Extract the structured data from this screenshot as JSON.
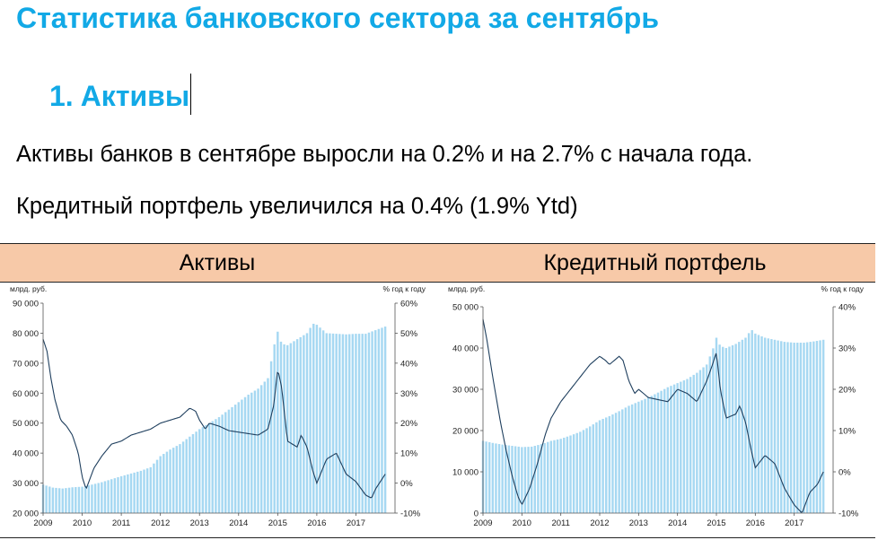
{
  "page": {
    "title": "Статистика банковского сектора за сентябрь",
    "section_number": "1.",
    "section_title": "Активы",
    "paragraph1": "Активы банков в сентябре выросли на 0.2% и на 2.7% с начала года.",
    "paragraph2": "Кредитный портфель увеличился на 0.4% (1.9% Ytd)"
  },
  "table": {
    "header_left": "Активы",
    "header_right": "Кредитный портфель",
    "header_bg": "#f7c9a8"
  },
  "colors": {
    "title": "#12a9e6",
    "bars": "#a6d8f2",
    "line": "#1f3f5e"
  },
  "chart_data": [
    {
      "type": "bar+line",
      "title": "Активы",
      "y_left_unit": "млрд. руб.",
      "y_right_unit": "% год к году",
      "y_left_range": [
        20000,
        90000
      ],
      "y_left_ticks": [
        "90 000",
        "80 000",
        "70 000",
        "60 000",
        "50 000",
        "40 000",
        "30 000",
        "20 000"
      ],
      "y_right_range": [
        -10,
        60
      ],
      "y_right_ticks": [
        "60%",
        "50%",
        "40%",
        "30%",
        "20%",
        "10%",
        "0%",
        "-10%"
      ],
      "x_ticks": [
        "2009",
        "2010",
        "2011",
        "2012",
        "2013",
        "2014",
        "2015",
        "2016",
        "2017"
      ],
      "x_range": [
        2009.0,
        2017.75
      ],
      "bars_series": {
        "name": "Активы, млрд. руб.",
        "points": [
          [
            2009.0,
            29500
          ],
          [
            2009.25,
            28500
          ],
          [
            2009.5,
            28200
          ],
          [
            2009.75,
            28600
          ],
          [
            2010.0,
            28800
          ],
          [
            2010.25,
            29500
          ],
          [
            2010.5,
            30300
          ],
          [
            2010.75,
            31300
          ],
          [
            2011.0,
            32300
          ],
          [
            2011.25,
            33200
          ],
          [
            2011.5,
            34100
          ],
          [
            2011.75,
            35300
          ],
          [
            2012.0,
            39000
          ],
          [
            2012.25,
            41200
          ],
          [
            2012.5,
            43000
          ],
          [
            2012.75,
            45500
          ],
          [
            2013.0,
            48000
          ],
          [
            2013.25,
            50000
          ],
          [
            2013.5,
            52000
          ],
          [
            2013.75,
            54500
          ],
          [
            2014.0,
            57000
          ],
          [
            2014.25,
            59500
          ],
          [
            2014.5,
            61500
          ],
          [
            2014.75,
            65000
          ],
          [
            2014.92,
            76500
          ],
          [
            2015.0,
            80500
          ],
          [
            2015.1,
            76500
          ],
          [
            2015.25,
            76000
          ],
          [
            2015.5,
            78000
          ],
          [
            2015.75,
            80000
          ],
          [
            2015.9,
            83200
          ],
          [
            2016.0,
            82800
          ],
          [
            2016.25,
            80000
          ],
          [
            2016.5,
            79800
          ],
          [
            2016.75,
            79600
          ],
          [
            2017.0,
            79800
          ],
          [
            2017.25,
            79800
          ],
          [
            2017.5,
            81000
          ],
          [
            2017.75,
            82200
          ]
        ]
      },
      "line_series": {
        "name": "% год к году",
        "points": [
          [
            2009.0,
            48
          ],
          [
            2009.1,
            44
          ],
          [
            2009.2,
            35
          ],
          [
            2009.3,
            28
          ],
          [
            2009.45,
            21
          ],
          [
            2009.6,
            19
          ],
          [
            2009.75,
            16
          ],
          [
            2009.9,
            10
          ],
          [
            2010.0,
            2
          ],
          [
            2010.1,
            -2
          ],
          [
            2010.3,
            5
          ],
          [
            2010.5,
            9
          ],
          [
            2010.75,
            13
          ],
          [
            2011.0,
            14
          ],
          [
            2011.25,
            16
          ],
          [
            2011.5,
            17
          ],
          [
            2011.75,
            18
          ],
          [
            2012.0,
            20
          ],
          [
            2012.25,
            21
          ],
          [
            2012.5,
            22
          ],
          [
            2012.75,
            25
          ],
          [
            2012.9,
            24
          ],
          [
            2013.0,
            21
          ],
          [
            2013.15,
            18
          ],
          [
            2013.25,
            20
          ],
          [
            2013.5,
            19
          ],
          [
            2013.75,
            17.5
          ],
          [
            2014.0,
            17
          ],
          [
            2014.25,
            16.5
          ],
          [
            2014.5,
            16
          ],
          [
            2014.75,
            18
          ],
          [
            2014.9,
            26
          ],
          [
            2015.0,
            38
          ],
          [
            2015.1,
            32
          ],
          [
            2015.25,
            14
          ],
          [
            2015.5,
            12
          ],
          [
            2015.6,
            16
          ],
          [
            2015.75,
            12
          ],
          [
            2015.9,
            4
          ],
          [
            2016.0,
            0
          ],
          [
            2016.25,
            8
          ],
          [
            2016.5,
            10
          ],
          [
            2016.75,
            3
          ],
          [
            2017.0,
            0.5
          ],
          [
            2017.25,
            -4
          ],
          [
            2017.4,
            -5
          ],
          [
            2017.5,
            -2
          ],
          [
            2017.75,
            3
          ]
        ]
      }
    },
    {
      "type": "bar+line",
      "title": "Кредитный портфель",
      "y_left_unit": "млрд. руб.",
      "y_right_unit": "% год к году",
      "y_left_range": [
        0,
        50000
      ],
      "y_left_ticks": [
        "50 000",
        "40 000",
        "30 000",
        "20 000",
        "10 000",
        "0"
      ],
      "y_right_range": [
        -10,
        40
      ],
      "y_right_ticks": [
        "40%",
        "30%",
        "20%",
        "10%",
        "0%",
        "-10%"
      ],
      "x_ticks": [
        "2009",
        "2010",
        "2011",
        "2012",
        "2013",
        "2014",
        "2015",
        "2016",
        "2017"
      ],
      "x_range": [
        2009.0,
        2017.75
      ],
      "bars_series": {
        "name": "Кредитный портфель, млрд. руб.",
        "points": [
          [
            2009.0,
            17500
          ],
          [
            2009.25,
            17000
          ],
          [
            2009.5,
            16600
          ],
          [
            2009.75,
            16300
          ],
          [
            2010.0,
            16000
          ],
          [
            2010.25,
            16100
          ],
          [
            2010.5,
            16700
          ],
          [
            2010.75,
            17500
          ],
          [
            2011.0,
            18000
          ],
          [
            2011.25,
            18800
          ],
          [
            2011.5,
            19700
          ],
          [
            2011.75,
            21000
          ],
          [
            2012.0,
            22500
          ],
          [
            2012.25,
            23500
          ],
          [
            2012.5,
            24700
          ],
          [
            2012.75,
            26000
          ],
          [
            2013.0,
            27000
          ],
          [
            2013.25,
            28000
          ],
          [
            2013.5,
            29200
          ],
          [
            2013.75,
            30500
          ],
          [
            2014.0,
            31500
          ],
          [
            2014.25,
            32500
          ],
          [
            2014.5,
            34000
          ],
          [
            2014.75,
            36000
          ],
          [
            2014.92,
            40000
          ],
          [
            2015.0,
            42500
          ],
          [
            2015.1,
            40500
          ],
          [
            2015.25,
            40000
          ],
          [
            2015.5,
            41000
          ],
          [
            2015.75,
            42500
          ],
          [
            2015.9,
            44500
          ],
          [
            2016.0,
            43500
          ],
          [
            2016.25,
            42500
          ],
          [
            2016.5,
            42000
          ],
          [
            2016.75,
            41500
          ],
          [
            2017.0,
            41300
          ],
          [
            2017.25,
            41300
          ],
          [
            2017.5,
            41600
          ],
          [
            2017.75,
            42000
          ]
        ]
      },
      "line_series": {
        "name": "% год к году",
        "points": [
          [
            2009.0,
            37
          ],
          [
            2009.1,
            32
          ],
          [
            2009.25,
            23
          ],
          [
            2009.45,
            12
          ],
          [
            2009.6,
            5
          ],
          [
            2009.75,
            -1
          ],
          [
            2009.9,
            -6
          ],
          [
            2010.0,
            -8
          ],
          [
            2010.2,
            -4
          ],
          [
            2010.4,
            2
          ],
          [
            2010.6,
            9
          ],
          [
            2010.75,
            13
          ],
          [
            2011.0,
            17
          ],
          [
            2011.25,
            20
          ],
          [
            2011.5,
            23
          ],
          [
            2011.75,
            26
          ],
          [
            2012.0,
            28
          ],
          [
            2012.15,
            27
          ],
          [
            2012.25,
            26
          ],
          [
            2012.5,
            28
          ],
          [
            2012.6,
            27
          ],
          [
            2012.75,
            22
          ],
          [
            2012.9,
            19
          ],
          [
            2013.0,
            20
          ],
          [
            2013.25,
            18
          ],
          [
            2013.5,
            17.5
          ],
          [
            2013.75,
            17
          ],
          [
            2014.0,
            20
          ],
          [
            2014.25,
            19
          ],
          [
            2014.5,
            17
          ],
          [
            2014.75,
            22
          ],
          [
            2014.9,
            26
          ],
          [
            2015.0,
            29
          ],
          [
            2015.1,
            20
          ],
          [
            2015.25,
            13
          ],
          [
            2015.5,
            14
          ],
          [
            2015.6,
            16
          ],
          [
            2015.75,
            12
          ],
          [
            2015.9,
            5
          ],
          [
            2016.0,
            1
          ],
          [
            2016.25,
            4
          ],
          [
            2016.5,
            2
          ],
          [
            2016.75,
            -4
          ],
          [
            2017.0,
            -8
          ],
          [
            2017.2,
            -10
          ],
          [
            2017.4,
            -5
          ],
          [
            2017.6,
            -3
          ],
          [
            2017.75,
            0
          ]
        ]
      }
    }
  ]
}
